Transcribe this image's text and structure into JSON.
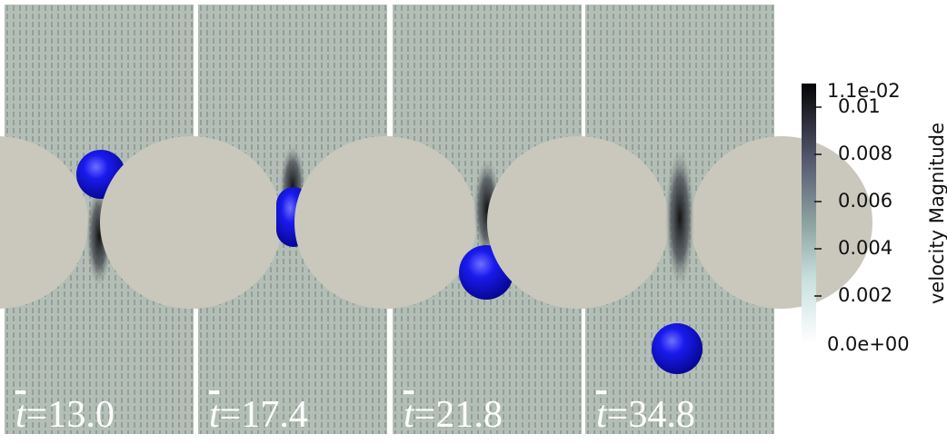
{
  "panels": [
    {
      "symbol": "t",
      "value": "=13.0"
    },
    {
      "symbol": "t",
      "value": "=17.4"
    },
    {
      "symbol": "t",
      "value": "=21.8"
    },
    {
      "symbol": "t",
      "value": "=34.8"
    }
  ],
  "colorbar": {
    "title": "velocity Magnitude",
    "max_label": "1.1e-02",
    "min_label": "0.0e+00",
    "range": [
      0,
      0.011
    ],
    "ticks": [
      0.01,
      0.008,
      0.006,
      0.004,
      0.002
    ]
  }
}
